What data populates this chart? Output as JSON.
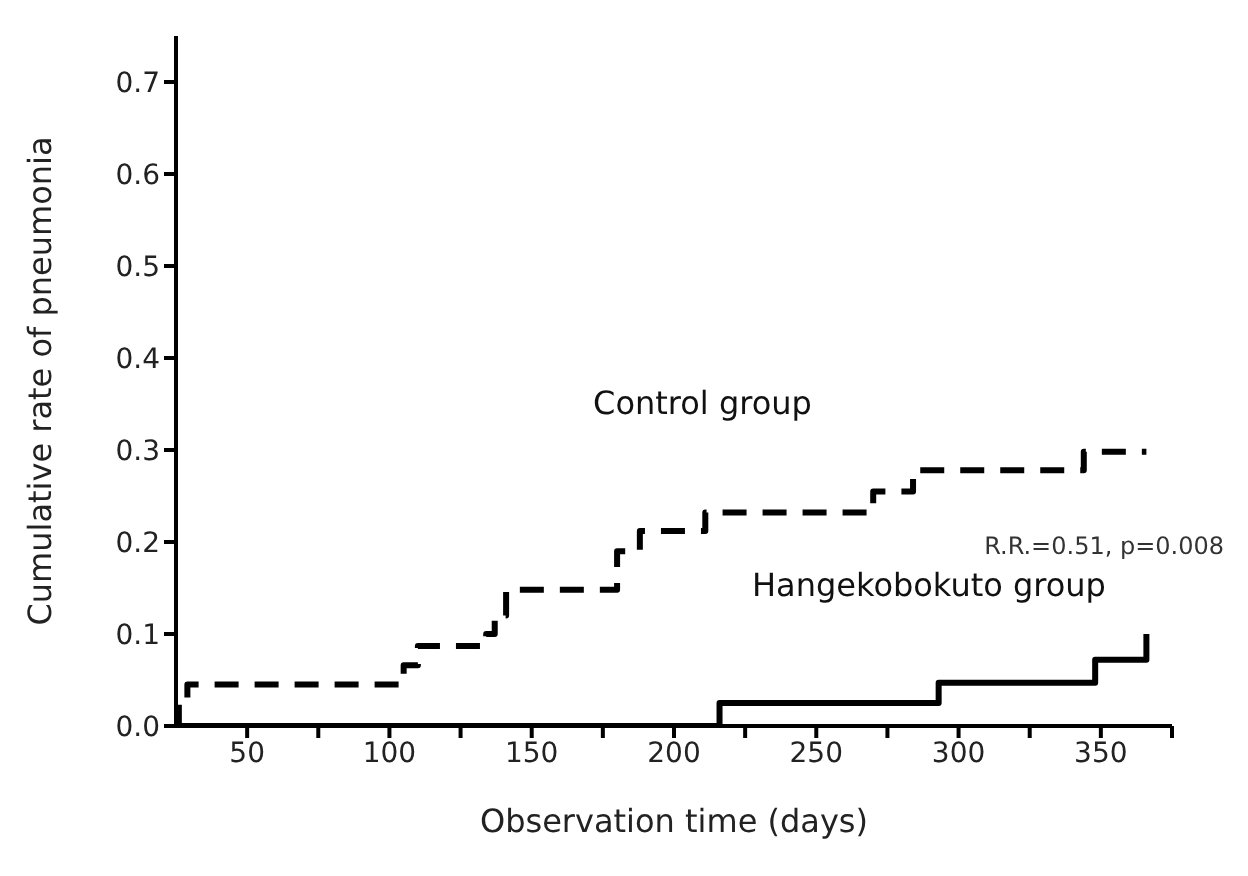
{
  "chart_data": {
    "type": "step",
    "xlabel": "Observation time (days)",
    "ylabel": "Cumulative rate of pneumonia",
    "xlim": [
      25,
      375
    ],
    "xticks": [
      50,
      {
        "value": 75,
        "label": null
      },
      100,
      {
        "value": 125,
        "label": null
      },
      150,
      {
        "value": 175,
        "label": null
      },
      200,
      {
        "value": 225,
        "label": null
      },
      250,
      {
        "value": 275,
        "label": null
      },
      300,
      {
        "value": 325,
        "label": null
      },
      350,
      {
        "value": 375,
        "label": null
      }
    ],
    "ylim": [
      0,
      0.75
    ],
    "yticks": [
      {
        "value": 0,
        "label": "0.0"
      },
      0.1,
      0.2,
      0.3,
      0.4,
      0.5,
      0.6,
      0.7
    ],
    "series": [
      {
        "name": "Control group",
        "color": "#000000",
        "line_style": "dashed",
        "x": [
          25,
          26,
          29,
          105,
          110,
          134,
          137,
          141,
          180,
          188,
          211,
          270,
          284,
          344,
          366
        ],
        "values": [
          0,
          0.024,
          0.045,
          0.066,
          0.087,
          0.1,
          0.12,
          0.148,
          0.19,
          0.212,
          0.232,
          0.255,
          0.278,
          0.298,
          0.298
        ]
      },
      {
        "name": "Hangekobokuto group",
        "color": "#000000",
        "line_style": "solid",
        "x": [
          25,
          216,
          293,
          348,
          366
        ],
        "values": [
          0,
          0.025,
          0.047,
          0.072,
          0.1
        ]
      }
    ],
    "annotations": [
      "R.R.=0.51, p=0.008"
    ]
  }
}
